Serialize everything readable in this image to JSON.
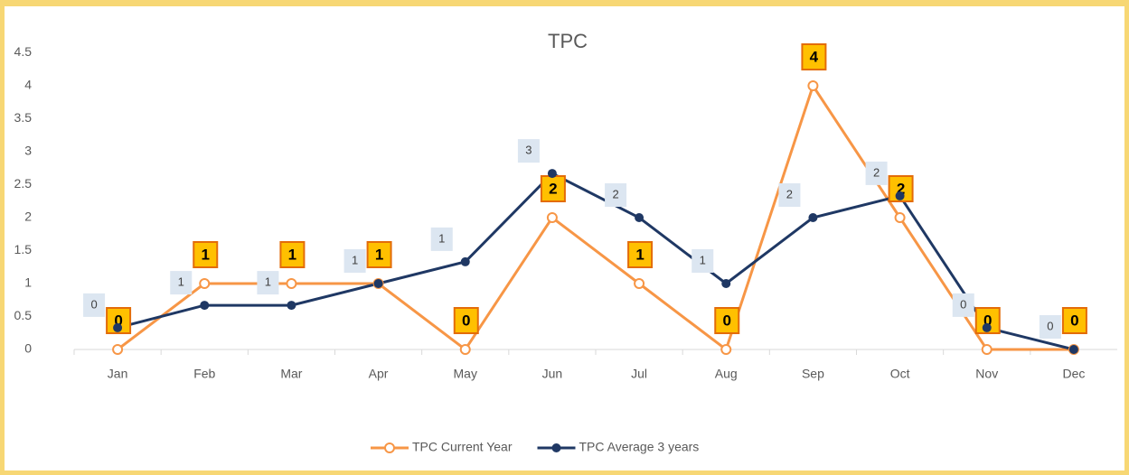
{
  "chart_data": {
    "type": "line",
    "title": "TPC",
    "categories": [
      "Jan",
      "Feb",
      "Mar",
      "Apr",
      "May",
      "Jun",
      "Jul",
      "Aug",
      "Sep",
      "Oct",
      "Nov",
      "Dec"
    ],
    "series": [
      {
        "name": "TPC Current Year",
        "color": "#f79646",
        "values": [
          0,
          1,
          1,
          1,
          0,
          2,
          1,
          0,
          4,
          2,
          0,
          0
        ]
      },
      {
        "name": "TPC Average 3 years",
        "color": "#1f3864",
        "values": [
          0.33,
          0.67,
          0.67,
          1,
          1.33,
          2.67,
          2,
          1,
          2,
          2.33,
          0.33,
          0
        ],
        "value_labels": [
          "0",
          "1",
          "1",
          "1",
          "1",
          "3",
          "2",
          "1",
          "2",
          "2",
          "0",
          "0"
        ]
      }
    ],
    "ylim": [
      0,
      4.5
    ],
    "yticks": [
      0,
      0.5,
      1,
      1.5,
      2,
      2.5,
      3,
      3.5,
      4,
      4.5
    ],
    "legend": "bottom"
  }
}
